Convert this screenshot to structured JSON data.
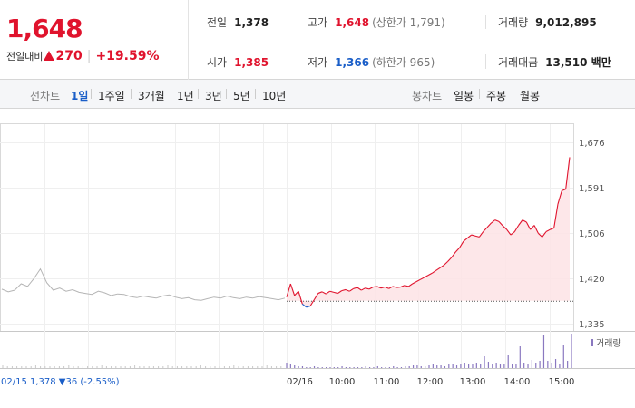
{
  "quote": {
    "price": "1,648",
    "change_label": "전일대비",
    "change_amount": "270",
    "change_percent": "+19.59%"
  },
  "stats": {
    "prev_close": {
      "label": "전일",
      "value": "1,378"
    },
    "high": {
      "label": "고가",
      "value": "1,648",
      "sub": "(상한가 1,791)"
    },
    "volume": {
      "label": "거래량",
      "value": "9,012,895"
    },
    "open": {
      "label": "시가",
      "value": "1,385"
    },
    "low": {
      "label": "저가",
      "value": "1,366",
      "sub": "(하한가 965)"
    },
    "amount": {
      "label": "거래대금",
      "value": "13,510 백만"
    }
  },
  "toolbar": {
    "line_label": "선차트",
    "line_periods": [
      "1일",
      "1주일",
      "3개월",
      "1년",
      "3년",
      "5년",
      "10년"
    ],
    "active_period": "1일",
    "candle_label": "봉차트",
    "candle_periods": [
      "일봉",
      "주봉",
      "월봉"
    ]
  },
  "colors": {
    "up": "#e0132d",
    "down": "#1a5ec8",
    "prev_line": "#b5b5b5",
    "fill": "#fde3e5",
    "volume": "#8a78c0"
  },
  "chart_data": {
    "type": "line",
    "y_ticks": [
      "1,676",
      "1,591",
      "1,506",
      "1,420",
      "1,335"
    ],
    "ylim": [
      1335,
      1676
    ],
    "baseline": 1378,
    "x_labels": [
      "02/15",
      "02/16",
      "10:00",
      "11:00",
      "12:00",
      "13:00",
      "14:00",
      "15:00"
    ],
    "prev_day_info": "02/15  1,378 ▼36 (-2.55%)",
    "volume_legend": "거래량",
    "prev_day_series": [
      1400,
      1395,
      1398,
      1410,
      1405,
      1420,
      1438,
      1412,
      1398,
      1402,
      1396,
      1399,
      1394,
      1392,
      1390,
      1396,
      1393,
      1388,
      1391,
      1390,
      1386,
      1384,
      1387,
      1385,
      1383,
      1387,
      1389,
      1385,
      1382,
      1384,
      1380,
      1379,
      1382,
      1385,
      1383,
      1387,
      1384,
      1382,
      1385,
      1383,
      1386,
      1384,
      1382,
      1380,
      1383
    ],
    "today_series": [
      1385,
      1410,
      1388,
      1396,
      1372,
      1366,
      1368,
      1380,
      1392,
      1395,
      1391,
      1396,
      1394,
      1392,
      1397,
      1399,
      1396,
      1401,
      1403,
      1398,
      1402,
      1400,
      1404,
      1405,
      1402,
      1404,
      1401,
      1405,
      1403,
      1404,
      1407,
      1405,
      1410,
      1414,
      1418,
      1422,
      1426,
      1430,
      1435,
      1440,
      1445,
      1452,
      1460,
      1470,
      1478,
      1490,
      1496,
      1502,
      1500,
      1498,
      1508,
      1516,
      1524,
      1530,
      1527,
      1519,
      1512,
      1502,
      1508,
      1520,
      1530,
      1526,
      1512,
      1520,
      1505,
      1498,
      1508,
      1512,
      1515,
      1560,
      1585,
      1588,
      1648
    ]
  }
}
